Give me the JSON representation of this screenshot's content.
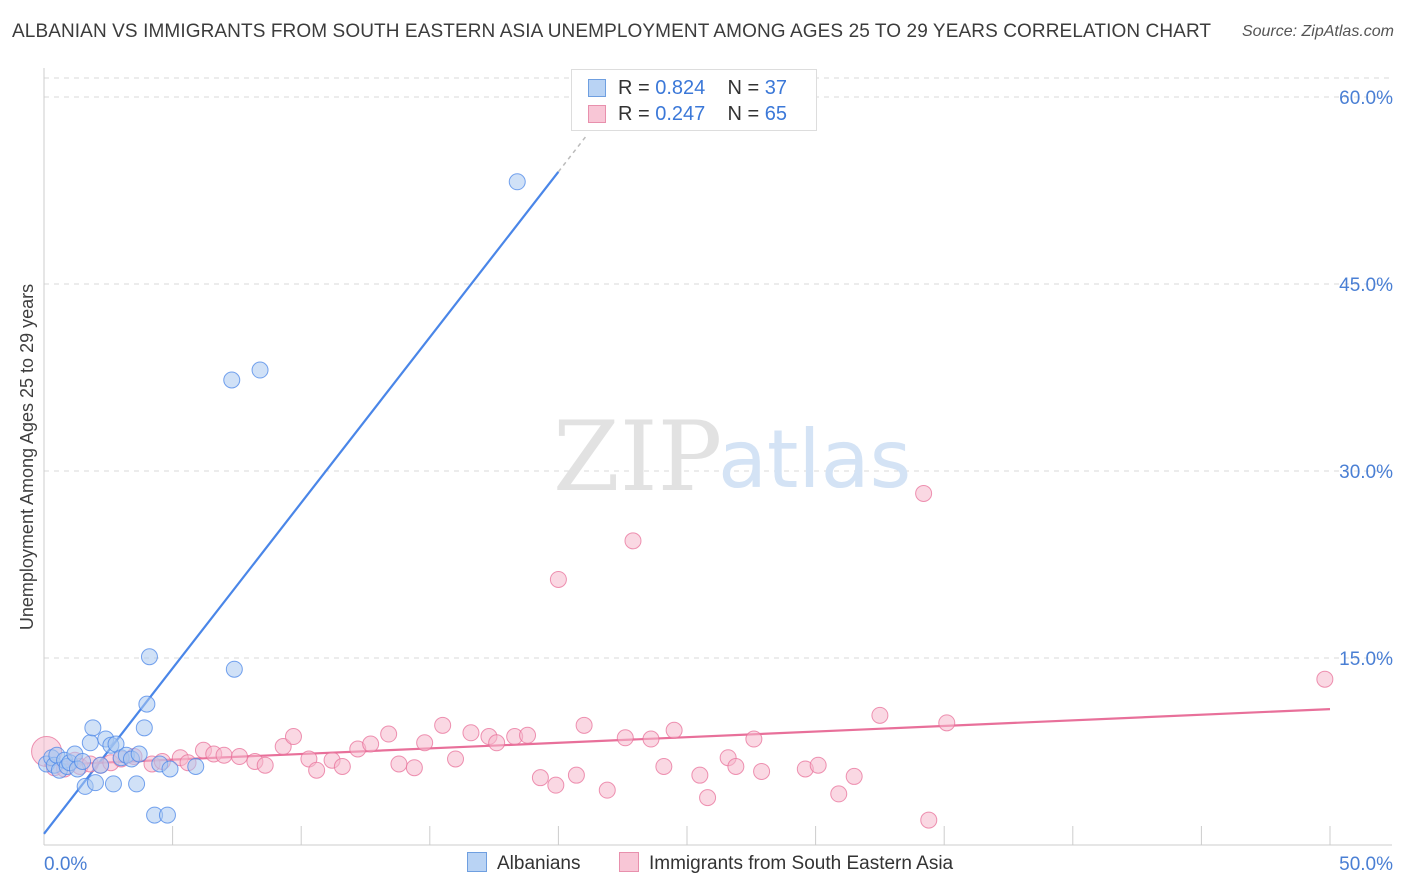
{
  "header": {
    "title": "ALBANIAN VS IMMIGRANTS FROM SOUTH EASTERN ASIA UNEMPLOYMENT AMONG AGES 25 TO 29 YEARS CORRELATION CHART",
    "source": "Source: ZipAtlas.com"
  },
  "watermark": {
    "zip": "ZIP",
    "atlas": "atlas"
  },
  "legend": {
    "albanians": {
      "r_label": "R = ",
      "r_value": "0.824",
      "n_label": "N = ",
      "n_value": "37"
    },
    "immigrants": {
      "r_label": "R = ",
      "r_value": "0.247",
      "n_label": "N = ",
      "n_value": "65"
    }
  },
  "bottom_legend": {
    "albanians": "Albanians",
    "immigrants": "Immigrants from South Eastern Asia"
  },
  "colors": {
    "blue": "#4a86e8",
    "blue_fill": "#a9c8f0",
    "pink": "#e8709a",
    "pink_fill": "#f5b8cc",
    "grid": "#d8d8d8"
  },
  "chart_data": {
    "type": "scatter",
    "ylabel": "Unemployment Among Ages 25 to 29 years",
    "xlim": [
      0,
      50
    ],
    "ylim": [
      0,
      60
    ],
    "x_ticks": [
      "0.0%",
      "50.0%"
    ],
    "y_ticks": [
      {
        "value": 15,
        "label": "15.0%"
      },
      {
        "value": 30,
        "label": "30.0%"
      },
      {
        "value": 45,
        "label": "45.0%"
      },
      {
        "value": 60,
        "label": "60.0%"
      }
    ],
    "grid": true,
    "series": [
      {
        "name": "Albanians",
        "color": "#4a86e8",
        "trend": {
          "x": [
            0,
            20
          ],
          "y": [
            0.9,
            54.0
          ]
        },
        "points": [
          [
            0.1,
            6.5
          ],
          [
            0.3,
            7.0
          ],
          [
            0.4,
            6.4
          ],
          [
            0.5,
            7.2
          ],
          [
            0.6,
            6.0
          ],
          [
            0.8,
            6.8
          ],
          [
            0.9,
            6.3
          ],
          [
            1.0,
            6.6
          ],
          [
            1.2,
            7.3
          ],
          [
            1.3,
            6.1
          ],
          [
            1.5,
            6.7
          ],
          [
            1.6,
            4.7
          ],
          [
            1.8,
            8.2
          ],
          [
            1.9,
            9.4
          ],
          [
            2.0,
            5.0
          ],
          [
            2.2,
            6.4
          ],
          [
            2.4,
            8.5
          ],
          [
            2.6,
            8.0
          ],
          [
            2.7,
            4.9
          ],
          [
            2.8,
            8.1
          ],
          [
            3.0,
            7.0
          ],
          [
            3.2,
            7.2
          ],
          [
            3.4,
            6.9
          ],
          [
            3.6,
            4.9
          ],
          [
            3.7,
            7.3
          ],
          [
            3.9,
            9.4
          ],
          [
            4.0,
            11.3
          ],
          [
            4.1,
            15.1
          ],
          [
            4.3,
            2.4
          ],
          [
            4.5,
            6.5
          ],
          [
            4.8,
            2.4
          ],
          [
            4.9,
            6.1
          ],
          [
            5.9,
            6.3
          ],
          [
            7.3,
            37.3
          ],
          [
            7.4,
            14.1
          ],
          [
            8.4,
            38.1
          ],
          [
            18.4,
            53.2
          ]
        ]
      },
      {
        "name": "Immigrants from South Eastern Asia",
        "color": "#e8709a",
        "trend": {
          "x": [
            0,
            50
          ],
          "y": [
            6.4,
            10.9
          ]
        },
        "points": [
          [
            0.1,
            7.5
          ],
          [
            0.4,
            6.2
          ],
          [
            0.8,
            6.1
          ],
          [
            1.2,
            6.8
          ],
          [
            1.4,
            6.3
          ],
          [
            1.8,
            6.5
          ],
          [
            2.2,
            6.4
          ],
          [
            2.6,
            6.6
          ],
          [
            3.0,
            6.9
          ],
          [
            3.5,
            7.1
          ],
          [
            4.2,
            6.5
          ],
          [
            4.6,
            6.7
          ],
          [
            5.3,
            7.0
          ],
          [
            5.6,
            6.6
          ],
          [
            6.2,
            7.6
          ],
          [
            6.6,
            7.3
          ],
          [
            7.0,
            7.2
          ],
          [
            7.6,
            7.1
          ],
          [
            8.2,
            6.7
          ],
          [
            8.6,
            6.4
          ],
          [
            9.3,
            7.9
          ],
          [
            9.7,
            8.7
          ],
          [
            10.3,
            6.9
          ],
          [
            10.6,
            6.0
          ],
          [
            11.2,
            6.8
          ],
          [
            11.6,
            6.3
          ],
          [
            12.2,
            7.7
          ],
          [
            12.7,
            8.1
          ],
          [
            13.4,
            8.9
          ],
          [
            13.8,
            6.5
          ],
          [
            14.4,
            6.2
          ],
          [
            14.8,
            8.2
          ],
          [
            15.5,
            9.6
          ],
          [
            16.0,
            6.9
          ],
          [
            16.6,
            9.0
          ],
          [
            17.3,
            8.7
          ],
          [
            17.6,
            8.2
          ],
          [
            18.3,
            8.7
          ],
          [
            18.8,
            8.8
          ],
          [
            19.3,
            5.4
          ],
          [
            20.0,
            21.3
          ],
          [
            19.9,
            4.8
          ],
          [
            20.7,
            5.6
          ],
          [
            21.0,
            9.6
          ],
          [
            21.9,
            4.4
          ],
          [
            22.6,
            8.6
          ],
          [
            22.9,
            24.4
          ],
          [
            23.6,
            8.5
          ],
          [
            24.1,
            6.3
          ],
          [
            24.5,
            9.2
          ],
          [
            25.5,
            5.6
          ],
          [
            25.8,
            3.8
          ],
          [
            26.6,
            7.0
          ],
          [
            26.9,
            6.3
          ],
          [
            27.6,
            8.5
          ],
          [
            27.9,
            5.9
          ],
          [
            29.6,
            6.1
          ],
          [
            30.1,
            6.4
          ],
          [
            30.9,
            4.1
          ],
          [
            31.5,
            5.5
          ],
          [
            32.5,
            10.4
          ],
          [
            34.2,
            28.2
          ],
          [
            34.4,
            2.0
          ],
          [
            35.1,
            9.8
          ],
          [
            49.8,
            13.3
          ]
        ]
      }
    ]
  }
}
